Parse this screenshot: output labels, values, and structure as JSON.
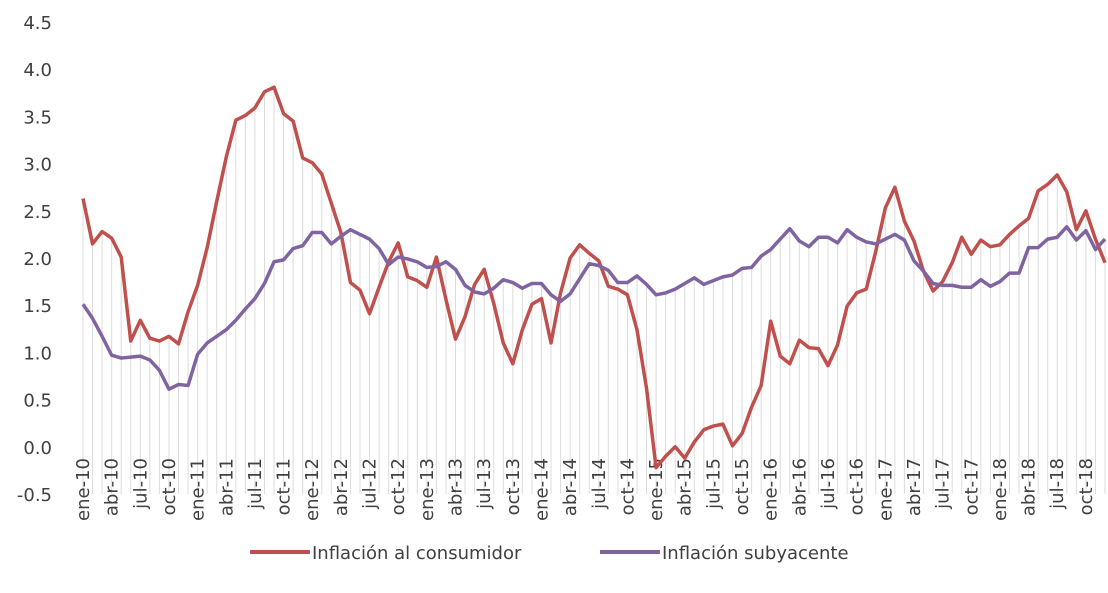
{
  "chart_data": {
    "type": "line",
    "categories": [
      "ene-10",
      null,
      null,
      "abr-10",
      null,
      null,
      "jul-10",
      null,
      null,
      "oct-10",
      null,
      null,
      "ene-11",
      null,
      null,
      "abr-11",
      null,
      null,
      "jul-11",
      null,
      null,
      "oct-11",
      null,
      null,
      "ene-12",
      null,
      null,
      "abr-12",
      null,
      null,
      "jul-12",
      null,
      null,
      "oct-12",
      null,
      null,
      "ene-13",
      null,
      null,
      "abr-13",
      null,
      null,
      "jul-13",
      null,
      null,
      "oct-13",
      null,
      null,
      "ene-14",
      null,
      null,
      "abr-14",
      null,
      null,
      "jul-14",
      null,
      null,
      "oct-14",
      null,
      null,
      "ene-15",
      null,
      null,
      "abr-15",
      null,
      null,
      "jul-15",
      null,
      null,
      "oct-15",
      null,
      null,
      "ene-16",
      null,
      null,
      "abr-16",
      null,
      null,
      "jul-16",
      null,
      null,
      "oct-16",
      null,
      null,
      "ene-17",
      null,
      null,
      "abr-17",
      null,
      null,
      "jul-17",
      null,
      null,
      "oct-17",
      null,
      null,
      "ene-18",
      null,
      null,
      "abr-18",
      null,
      null,
      "jul-18",
      null,
      null,
      "oct-18",
      null,
      null
    ],
    "series": [
      {
        "name": "Inflación al consumidor",
        "color": "#c0504d",
        "values": [
          2.63,
          2.15,
          2.28,
          2.21,
          2.01,
          1.12,
          1.34,
          1.15,
          1.12,
          1.17,
          1.09,
          1.43,
          1.71,
          2.11,
          2.6,
          3.07,
          3.46,
          3.51,
          3.59,
          3.76,
          3.81,
          3.53,
          3.45,
          3.06,
          3.01,
          2.89,
          2.58,
          2.27,
          1.74,
          1.66,
          1.41,
          1.69,
          1.96,
          2.16,
          1.8,
          1.76,
          1.69,
          2.01,
          1.56,
          1.14,
          1.38,
          1.72,
          1.88,
          1.52,
          1.1,
          0.88,
          1.24,
          1.51,
          1.57,
          1.1,
          1.63,
          2.0,
          2.14,
          2.05,
          1.97,
          1.7,
          1.67,
          1.61,
          1.24,
          0.62,
          -0.22,
          -0.1,
          0.0,
          -0.12,
          0.05,
          0.18,
          0.22,
          0.24,
          0.01,
          0.14,
          0.42,
          0.65,
          1.33,
          0.96,
          0.88,
          1.13,
          1.05,
          1.04,
          0.86,
          1.08,
          1.49,
          1.63,
          1.67,
          2.07,
          2.53,
          2.75,
          2.39,
          2.18,
          1.86,
          1.65,
          1.75,
          1.95,
          2.22,
          2.04,
          2.19,
          2.12,
          2.14,
          2.25,
          2.34,
          2.42,
          2.71,
          2.78,
          2.88,
          2.7,
          2.3,
          2.5,
          2.2,
          1.95
        ]
      },
      {
        "name": "Inflación subyacente",
        "color": "#8064a2",
        "values": [
          1.51,
          1.36,
          1.17,
          0.97,
          0.94,
          0.95,
          0.96,
          0.92,
          0.81,
          0.61,
          0.66,
          0.65,
          0.98,
          1.1,
          1.17,
          1.24,
          1.34,
          1.46,
          1.57,
          1.73,
          1.96,
          1.98,
          2.1,
          2.13,
          2.27,
          2.27,
          2.15,
          2.23,
          2.3,
          2.25,
          2.2,
          2.1,
          1.93,
          2.01,
          1.99,
          1.96,
          1.9,
          1.91,
          1.96,
          1.88,
          1.71,
          1.64,
          1.62,
          1.68,
          1.77,
          1.74,
          1.68,
          1.73,
          1.73,
          1.61,
          1.54,
          1.62,
          1.78,
          1.94,
          1.92,
          1.87,
          1.74,
          1.74,
          1.81,
          1.72,
          1.61,
          1.63,
          1.67,
          1.73,
          1.79,
          1.72,
          1.76,
          1.8,
          1.82,
          1.89,
          1.9,
          2.02,
          2.09,
          2.2,
          2.31,
          2.18,
          2.12,
          2.22,
          2.22,
          2.16,
          2.3,
          2.22,
          2.17,
          2.15,
          2.2,
          2.25,
          2.19,
          1.97,
          1.86,
          1.73,
          1.71,
          1.71,
          1.69,
          1.69,
          1.77,
          1.7,
          1.75,
          1.84,
          1.84,
          2.11,
          2.11,
          2.2,
          2.22,
          2.33,
          2.19,
          2.29,
          2.09,
          2.2
        ]
      }
    ],
    "ylim": [
      -0.5,
      4.5
    ],
    "yticks": [
      -0.5,
      {
        "value": 0,
        "label": "0.0"
      },
      0.5,
      {
        "value": 1,
        "label": "1.0"
      },
      1.5,
      {
        "value": 2,
        "label": "2.0"
      },
      2.5,
      {
        "value": 3,
        "label": "3.0"
      },
      3.5,
      {
        "value": 4,
        "label": "4.0"
      },
      4.5
    ],
    "legend": "bottom"
  }
}
